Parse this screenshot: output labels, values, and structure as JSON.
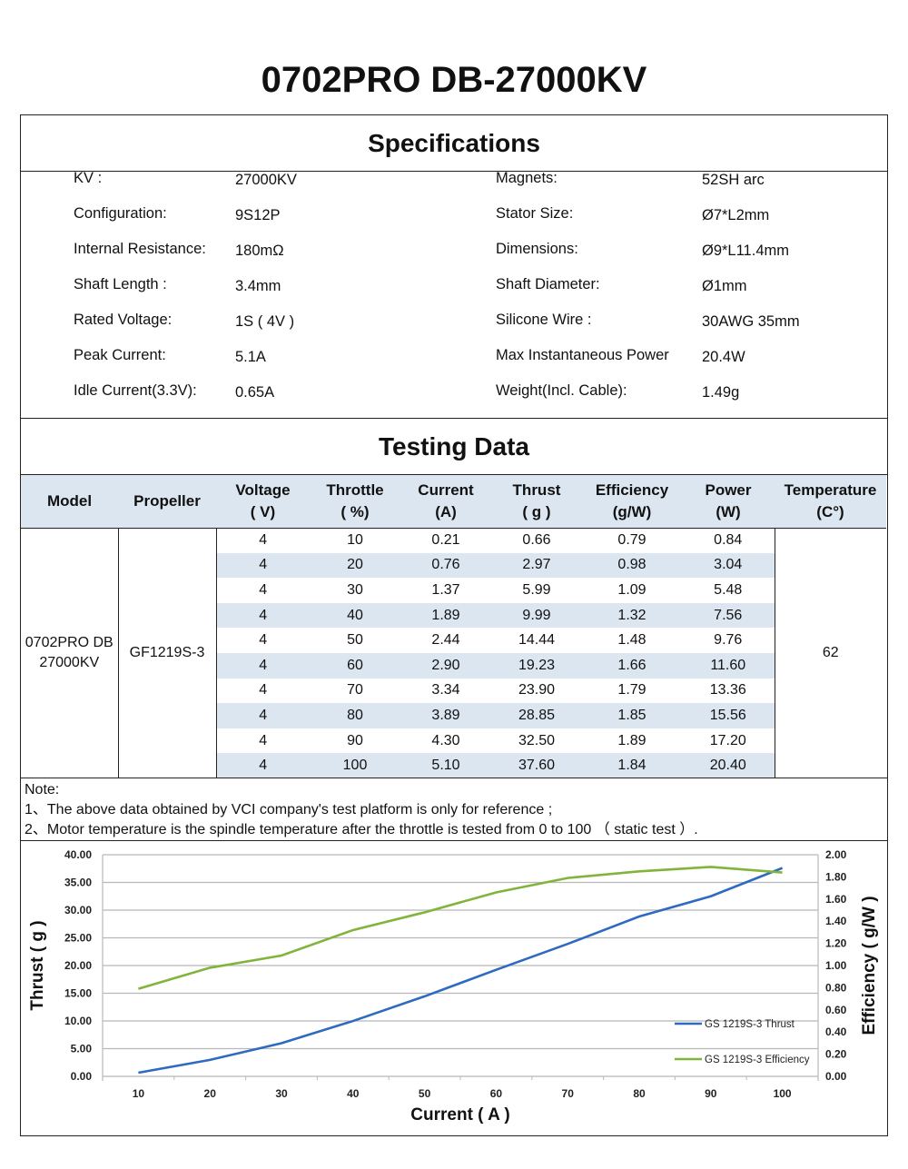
{
  "title": "0702PRO DB-27000KV",
  "specifications": {
    "heading": "Specifications",
    "left": [
      {
        "label": "KV :",
        "value": "27000KV"
      },
      {
        "label": "Configuration:",
        "value": "9S12P"
      },
      {
        "label": "Internal Resistance:",
        "value": "180mΩ"
      },
      {
        "label": "Shaft Length :",
        "value": "3.4mm"
      },
      {
        "label": "Rated Voltage:",
        "value": "1S ( 4V )"
      },
      {
        "label": "Peak Current:",
        "value": "5.1A"
      },
      {
        "label": "Idle Current(3.3V):",
        "value": "0.65A"
      }
    ],
    "right": [
      {
        "label": "Magnets:",
        "value": "52SH   arc"
      },
      {
        "label": "Stator Size:",
        "value": "Ø7*L2mm"
      },
      {
        "label": "Dimensions:",
        "value": "Ø9*L11.4mm"
      },
      {
        "label": "Shaft Diameter:",
        "value": "Ø1mm"
      },
      {
        "label": "Silicone Wire :",
        "value": "30AWG 35mm"
      },
      {
        "label": "Max Instantaneous Power",
        "value": "20.4W"
      },
      {
        "label": "Weight(Incl. Cable):",
        "value": "1.49g"
      }
    ]
  },
  "testing": {
    "heading": "Testing Data",
    "columns": [
      [
        "Model",
        ""
      ],
      [
        "Propeller",
        ""
      ],
      [
        "Voltage",
        "( V)"
      ],
      [
        "Throttle",
        "( %)"
      ],
      [
        "Current",
        "(A)"
      ],
      [
        "Thrust",
        "( g )"
      ],
      [
        "Efficiency",
        "(g/W)"
      ],
      [
        "Power",
        "(W)"
      ],
      [
        "Temperature",
        "(C°)"
      ]
    ],
    "model": "0702PRO DB 27000KV",
    "propeller": "GF1219S-3",
    "temperature": "62",
    "rows": [
      [
        "4",
        "10",
        "0.21",
        "0.66",
        "0.79",
        "0.84"
      ],
      [
        "4",
        "20",
        "0.76",
        "2.97",
        "0.98",
        "3.04"
      ],
      [
        "4",
        "30",
        "1.37",
        "5.99",
        "1.09",
        "5.48"
      ],
      [
        "4",
        "40",
        "1.89",
        "9.99",
        "1.32",
        "7.56"
      ],
      [
        "4",
        "50",
        "2.44",
        "14.44",
        "1.48",
        "9.76"
      ],
      [
        "4",
        "60",
        "2.90",
        "19.23",
        "1.66",
        "11.60"
      ],
      [
        "4",
        "70",
        "3.34",
        "23.90",
        "1.79",
        "13.36"
      ],
      [
        "4",
        "80",
        "3.89",
        "28.85",
        "1.85",
        "15.56"
      ],
      [
        "4",
        "90",
        "4.30",
        "32.50",
        "1.89",
        "17.20"
      ],
      [
        "4",
        "100",
        "5.10",
        "37.60",
        "1.84",
        "20.40"
      ]
    ]
  },
  "notes": [
    "Note:",
    "1、The above data obtained by VCI company's test platform is only for reference ;",
    "2、Motor temperature is the spindle temperature after the throttle is tested from 0 to 100 （ static test ）."
  ],
  "colors": {
    "header_bg": "#dce6f1",
    "thrust": "#2e6bc0",
    "efficiency": "#82b43c"
  },
  "chart_data": {
    "type": "line",
    "categories": [
      "10",
      "20",
      "30",
      "40",
      "50",
      "60",
      "70",
      "80",
      "90",
      "100"
    ],
    "xlabel": "Current ( A )",
    "ylabel": "Thrust ( g )",
    "ylabel_right": "Efficiency ( g/W )",
    "ylim": [
      0,
      40
    ],
    "ylim_right": [
      0,
      2
    ],
    "yticks": [
      "0.00",
      "5.00",
      "10.00",
      "15.00",
      "20.00",
      "25.00",
      "30.00",
      "35.00",
      "40.00"
    ],
    "yticks_right": [
      "0.00",
      "0.20",
      "0.40",
      "0.60",
      "0.80",
      "1.00",
      "1.20",
      "1.40",
      "1.60",
      "1.80",
      "2.00"
    ],
    "grid": true,
    "legend": "bottom-right",
    "series": [
      {
        "name": "GS 1219S-3 Thrust",
        "axis": "left",
        "values": [
          0.66,
          2.97,
          5.99,
          9.99,
          14.44,
          19.23,
          23.9,
          28.85,
          32.5,
          37.6
        ]
      },
      {
        "name": "GS 1219S-3 Efficiency",
        "axis": "right",
        "values": [
          0.79,
          0.98,
          1.09,
          1.32,
          1.48,
          1.66,
          1.79,
          1.85,
          1.89,
          1.84
        ]
      }
    ]
  }
}
